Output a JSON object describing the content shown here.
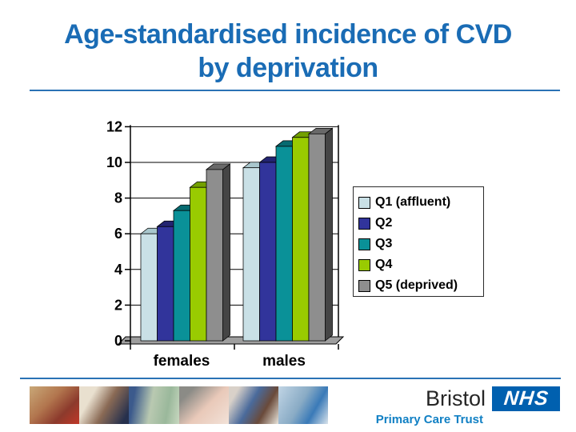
{
  "slide": {
    "title_line1": "Age-standardised incidence of CVD",
    "title_line2": "by deprivation"
  },
  "chart_data": {
    "type": "bar",
    "style": "3d-clustered-column",
    "title": "Age-standardised incidence of CVD by deprivation",
    "xlabel": "",
    "ylabel": "",
    "categories": [
      "females",
      "males"
    ],
    "series": [
      {
        "name": "Q1 (affluent)",
        "values": [
          6.0,
          9.7
        ],
        "color": "#c9e0e6",
        "top_color": "#a9c7cd",
        "side_color": "#8fb2b8"
      },
      {
        "name": "Q2",
        "values": [
          6.4,
          10.0
        ],
        "color": "#31349b",
        "top_color": "#232471",
        "side_color": "#1c1d5e"
      },
      {
        "name": "Q3",
        "values": [
          7.3,
          10.9
        ],
        "color": "#0a9198",
        "top_color": "#066a70",
        "side_color": "#05565b"
      },
      {
        "name": "Q4",
        "values": [
          8.6,
          11.4
        ],
        "color": "#99cb01",
        "top_color": "#73a000",
        "side_color": "#5d8200"
      },
      {
        "name": "Q5 (deprived)",
        "values": [
          9.6,
          11.6
        ],
        "color": "#8e8e8e",
        "top_color": "#696969",
        "side_color": "#454545"
      }
    ],
    "ylim": [
      0,
      12
    ],
    "ytick_step": 2,
    "grid": true,
    "legend_position": "right",
    "floor_color": "#9e9e9e"
  },
  "footer": {
    "org_city": "Bristol",
    "org_logo": "NHS",
    "org_subtitle": "Primary Care Trust",
    "photo_strip": [
      "boy-with-red-ball",
      "mother-and-toddler",
      "exercise-class",
      "dentist-examining-patient",
      "doctor-and-nurse",
      "reception-desk"
    ]
  },
  "colors": {
    "title_blue": "#1a6cb5",
    "rule_blue": "#2a72b5",
    "nhs_blue": "#0060af",
    "pct_blue": "#1180c4"
  }
}
